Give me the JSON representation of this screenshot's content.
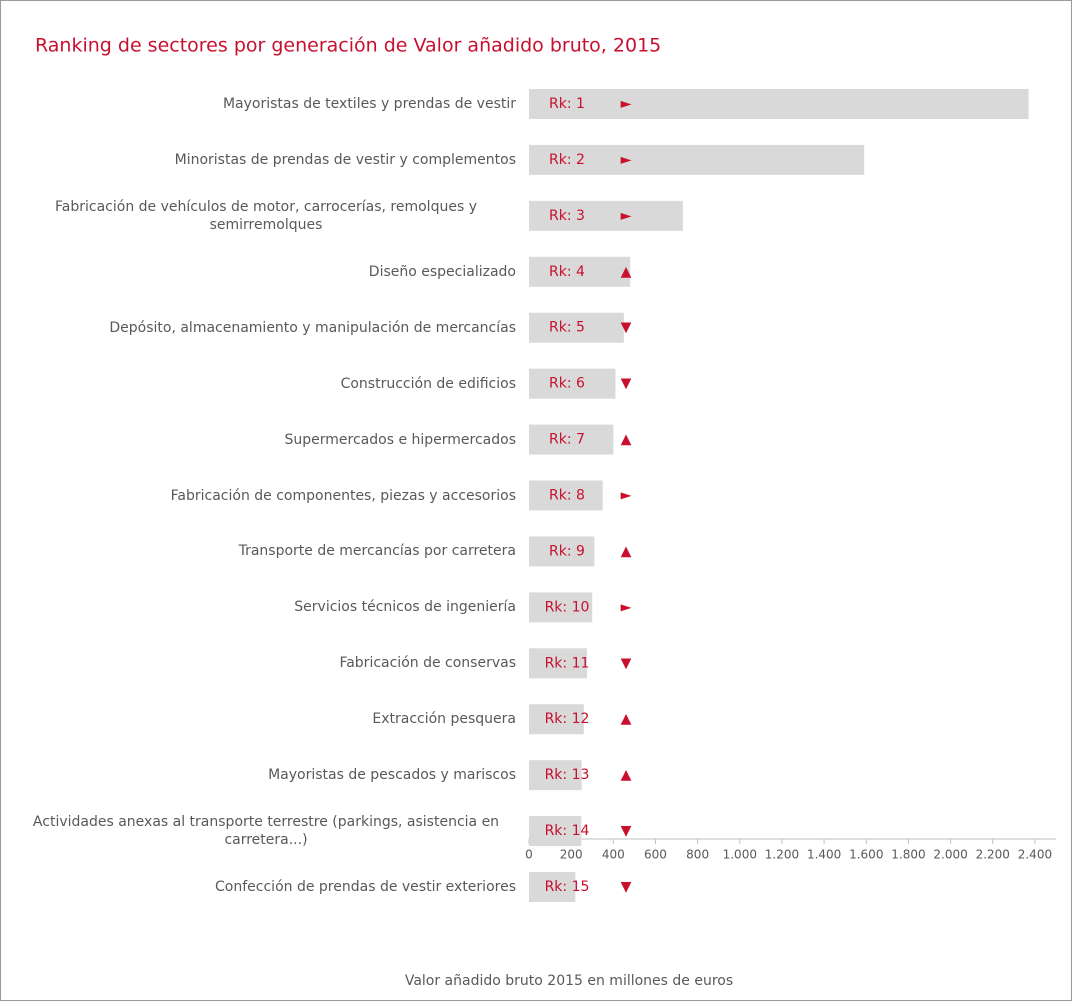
{
  "chart_data": {
    "type": "bar",
    "orientation": "horizontal",
    "title": "Ranking de sectores por generación de Valor añadido bruto, 2015",
    "x_label": "Valor añadido bruto 2015 en millones de euros",
    "categories": [
      "Mayoristas de textiles y prendas de vestir",
      "Minoristas de prendas de vestir y complementos",
      "Fabricación de vehículos de motor, carrocerías, remolques y semirremolques",
      "Diseño especializado",
      "Depósito, almacenamiento y manipulación de mercancías",
      "Construcción de edificios",
      "Supermercados e hipermercados",
      "Fabricación de componentes, piezas y accesorios",
      "Transporte de mercancías por carretera",
      "Servicios técnicos de ingeniería",
      "Fabricación de conservas",
      "Extracción pesquera",
      "Mayoristas de pescados y mariscos",
      "Actividades anexas al transporte terrestre (parkings, asistencia en carretera...)",
      "Confección de prendas de vestir exteriores"
    ],
    "values": [
      2370,
      1590,
      730,
      480,
      450,
      410,
      400,
      350,
      310,
      300,
      275,
      260,
      250,
      248,
      220
    ],
    "rank_labels": [
      "Rk: 1",
      "Rk: 2",
      "Rk: 3",
      "Rk: 4",
      "Rk: 5",
      "Rk: 6",
      "Rk: 7",
      "Rk: 8",
      "Rk: 9",
      "Rk: 10",
      "Rk: 11",
      "Rk: 12",
      "Rk: 13",
      "Rk: 14",
      "Rk: 15"
    ],
    "trend_markers": [
      "►",
      "►",
      "►",
      "▲",
      "▼",
      "▼",
      "▲",
      "►",
      "▲",
      "►",
      "▼",
      "▲",
      "▲",
      "▼",
      "▼"
    ],
    "color": "#d9d9d9",
    "label_color": "#c8102e",
    "xlim": [
      0,
      2500
    ],
    "xticks": [
      0,
      200,
      400,
      600,
      800,
      {
        "value": 1000,
        "label": "1.000"
      },
      {
        "value": 1200,
        "label": "1.200"
      },
      {
        "value": 1400,
        "label": "1.400"
      },
      {
        "value": 1600,
        "label": "1.600"
      },
      {
        "value": 1800,
        "label": "1.800"
      },
      {
        "value": 2000,
        "label": "2.000"
      },
      {
        "value": 2200,
        "label": "2.200"
      },
      {
        "value": 2400,
        "label": "2.400"
      }
    ],
    "grid": false
  }
}
